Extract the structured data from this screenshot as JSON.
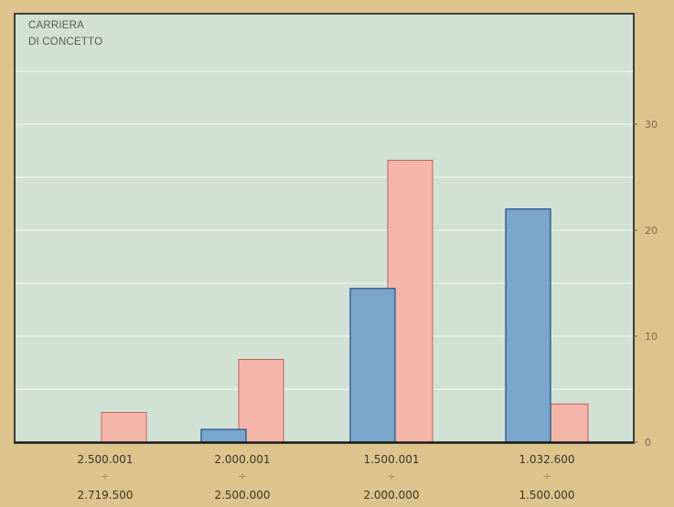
{
  "chart_data": {
    "type": "bar",
    "title_lines": [
      "CARRIERA",
      "DI CONCETTO"
    ],
    "categories": [
      {
        "top": "2.500.001",
        "sep": "÷",
        "bottom": "2.719.500"
      },
      {
        "top": "2.000.001",
        "sep": "÷",
        "bottom": "2.500.000"
      },
      {
        "top": "1.500.001",
        "sep": "÷",
        "bottom": "2.000.000"
      },
      {
        "top": "1.032.600",
        "sep": "÷",
        "bottom": "1.500.000"
      }
    ],
    "series": [
      {
        "color": "#7aa6cc",
        "stroke": "#1d4e86",
        "values": [
          0,
          1.2,
          14.5,
          22.0
        ]
      },
      {
        "color": "#f4b6ab",
        "stroke": "#c2605a",
        "values": [
          2.8,
          7.8,
          26.6,
          3.6
        ]
      }
    ],
    "y_ticks": [
      "0",
      "10",
      "20",
      "30"
    ],
    "ylim": [
      0,
      40
    ],
    "y_axis_side": "right",
    "grid": true,
    "plot_bg": "#d1e1d3",
    "frame_color": "#1a1a1a"
  }
}
